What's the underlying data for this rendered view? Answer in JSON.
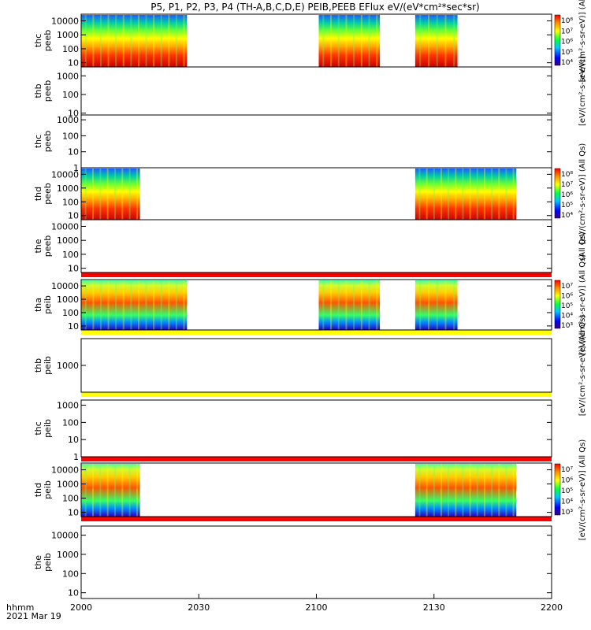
{
  "title": "P5, P1, P2, P3, P4 (TH-A,B,C,D,E) PEIB,PEEB EFlux eV/(eV*cm²*sec*sr)",
  "footer": {
    "time_label": "hhmm",
    "date_label": "2021 Mar 19"
  },
  "colors": {
    "bar_red": "#ff0000",
    "bar_yellow": "#ffff00",
    "frame": "#000000"
  },
  "chart_data": {
    "type": "heatmap",
    "x_axis": {
      "ticks": [
        "2000",
        "2030",
        "2100",
        "2130",
        "2200"
      ],
      "range": [
        "20:00",
        "22:00"
      ]
    },
    "panels": [
      {
        "probe": "thc",
        "product": "peeb",
        "ticks": [
          "10000",
          "1000",
          "100",
          "10"
        ],
        "yrange": [
          5,
          30000
        ],
        "colorbar": {
          "labels": [
            "10⁸",
            "10⁷",
            "10⁶",
            "10⁵",
            "10⁴"
          ],
          "unit": "[eV/(cm²-s-sr-eV)] (Al"
        },
        "blocks": [
          [
            20.0,
            20.45
          ],
          [
            21.01,
            21.27
          ],
          [
            21.42,
            21.6
          ]
        ]
      },
      {
        "probe": "thb",
        "product": "peeb",
        "ticks": [
          "1000",
          "100",
          "10"
        ],
        "yrange": [
          8,
          3000
        ],
        "colorbar": {
          "labels": [],
          "unit": "[eV/(cm²-s-sr-eV)]"
        },
        "blocks": []
      },
      {
        "probe": "thc",
        "product": "peeb",
        "ticks": [
          "1000",
          "100",
          "10",
          "1"
        ],
        "yrange": [
          1,
          2000
        ],
        "colorbar": {
          "labels": [],
          "unit": ""
        },
        "blocks": []
      },
      {
        "probe": "thd",
        "product": "peeb",
        "ticks": [
          "10000",
          "1000",
          "100",
          "10"
        ],
        "yrange": [
          5,
          30000
        ],
        "colorbar": {
          "labels": [
            "10⁸",
            "10⁷",
            "10⁶",
            "10⁵",
            "10⁴"
          ],
          "unit": "[eV/(cm²-s-sr-eV)] (All Qs)"
        },
        "blocks": [
          [
            20.0,
            20.25
          ],
          [
            21.42,
            21.85
          ]
        ]
      },
      {
        "probe": "the",
        "product": "peeb",
        "ticks": [
          "10000",
          "1000",
          "100",
          "10"
        ],
        "yrange": [
          5,
          30000
        ],
        "colorbar": {
          "labels": [],
          "unit": "(All Qs)"
        },
        "blocks": []
      },
      {
        "probe": "tha",
        "product": "peib",
        "ticks": [
          "10000",
          "1000",
          "100",
          "10"
        ],
        "yrange": [
          5,
          30000
        ],
        "colorbar": {
          "labels": [
            "10⁷",
            "10⁶",
            "10⁵",
            "10⁴",
            "10³"
          ],
          "unit": "[eV/(cm²-s-sr-eV)] (All Qs)"
        },
        "blocks": [
          [
            20.0,
            20.45
          ],
          [
            21.01,
            21.27
          ],
          [
            21.42,
            21.6
          ]
        ]
      },
      {
        "probe": "thb",
        "product": "peib",
        "ticks": [
          "1000"
        ],
        "yrange": [
          100,
          10000
        ],
        "colorbar": {
          "labels": [],
          "unit": "[eV/(cm²-s-sr-eV)] (All Qs)"
        },
        "blocks": []
      },
      {
        "probe": "thc",
        "product": "peib",
        "ticks": [
          "1000",
          "100",
          "10",
          "1"
        ],
        "yrange": [
          1,
          2000
        ],
        "colorbar": {
          "labels": [],
          "unit": ""
        },
        "blocks": []
      },
      {
        "probe": "thd",
        "product": "peib",
        "ticks": [
          "10000",
          "1000",
          "100",
          "10"
        ],
        "yrange": [
          5,
          30000
        ],
        "colorbar": {
          "labels": [
            "10⁷",
            "10⁶",
            "10⁵",
            "10⁴",
            "10³"
          ],
          "unit": "[eV/(cm²-s-sr-eV)] (All Qs)"
        },
        "blocks": [
          [
            20.0,
            20.25
          ],
          [
            21.42,
            21.85
          ]
        ]
      },
      {
        "probe": "the",
        "product": "peib",
        "ticks": [
          "10000",
          "1000",
          "100",
          "10"
        ],
        "yrange": [
          5,
          30000
        ],
        "colorbar": {
          "labels": [],
          "unit": ""
        },
        "blocks": []
      }
    ]
  }
}
